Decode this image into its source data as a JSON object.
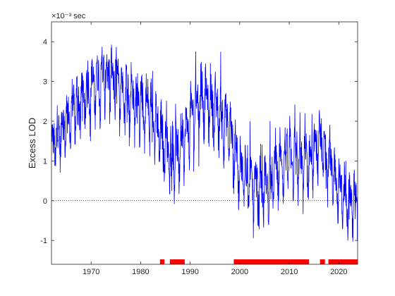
{
  "chart_data": {
    "type": "line",
    "title": "",
    "xlabel": "",
    "ylabel": "Excess LOD",
    "y_exponent_label": "×10⁻³ sec",
    "xlim": [
      1962,
      2023.8
    ],
    "ylim": [
      -1.6,
      4.5
    ],
    "x_ticks": [
      1970,
      1980,
      1990,
      2000,
      2010,
      2020
    ],
    "y_ticks": [
      -1,
      0,
      1,
      2,
      3,
      4
    ],
    "grid": false,
    "legend": "none",
    "reference_line": {
      "y": 0,
      "style": "dotted",
      "color": "#000000"
    },
    "series": [
      {
        "color": "#0000ff",
        "style": "solid",
        "trend": {
          "x": [
            1962,
            1964,
            1966,
            1968,
            1970,
            1972,
            1974,
            1976,
            1978,
            1980,
            1982,
            1984,
            1986,
            1988,
            1990,
            1992,
            1994,
            1996,
            1998,
            2000,
            2002,
            2004,
            2006,
            2008,
            2010,
            2012,
            2014,
            2016,
            2018,
            2020,
            2022,
            2023.8
          ],
          "y": [
            1.3,
            1.8,
            2.2,
            2.5,
            2.8,
            3.1,
            3.0,
            2.8,
            2.6,
            2.4,
            2.2,
            1.7,
            1.1,
            1.2,
            2.0,
            2.6,
            2.4,
            2.2,
            1.7,
            0.8,
            0.5,
            0.3,
            0.4,
            0.9,
            1.1,
            0.9,
            0.9,
            1.4,
            1.0,
            0.3,
            0.0,
            -0.1
          ]
        },
        "annual_amplitude": [
          [
            1962,
            0.7
          ],
          [
            1972,
            0.95
          ],
          [
            1980,
            0.85
          ],
          [
            1990,
            0.9
          ],
          [
            2000,
            0.85
          ],
          [
            2010,
            0.8
          ],
          [
            2023.8,
            0.75
          ]
        ]
      }
    ],
    "markers": {
      "color": "#ff0000",
      "y": -1.6,
      "intervals": [
        [
          1983.9,
          1984.8
        ],
        [
          1985.9,
          1988.9
        ],
        [
          1998.8,
          2014.0
        ],
        [
          2016.2,
          2017.2
        ],
        [
          2017.9,
          2023.8
        ]
      ]
    }
  }
}
